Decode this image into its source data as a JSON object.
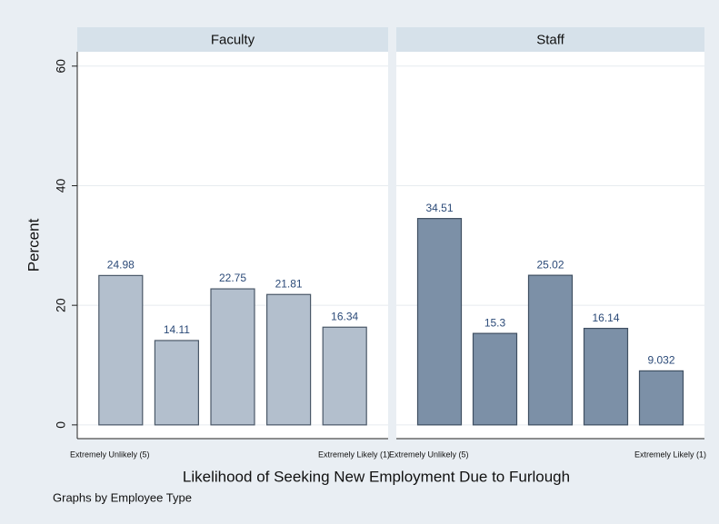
{
  "chart_data": [
    {
      "type": "bar",
      "title": "Faculty",
      "categories": [
        "Extremely Unlikely (5)",
        null,
        null,
        null,
        "Extremely Likely (1)"
      ],
      "values": [
        24.98,
        14.11,
        22.75,
        21.81,
        16.34
      ],
      "color": "#b3bfcd",
      "ylim": [
        -2.3,
        62.4
      ],
      "yticks": [
        0,
        20,
        40,
        60
      ],
      "grid": true
    },
    {
      "type": "bar",
      "title": "Staff",
      "categories": [
        "Extremely Unlikely (5)",
        null,
        null,
        null,
        "Extremely Likely (1)"
      ],
      "values": [
        34.51,
        15.3,
        25.02,
        16.14,
        9.032
      ],
      "color": "#7c90a7",
      "ylim": [
        -2.3,
        62.4
      ],
      "yticks": [
        0,
        20,
        40,
        60
      ],
      "grid": true
    }
  ],
  "x_label": "Likelihood of Seeking New Employment Due to Furlough",
  "y_label": "Percent",
  "note": "Graphs by Employee Type"
}
